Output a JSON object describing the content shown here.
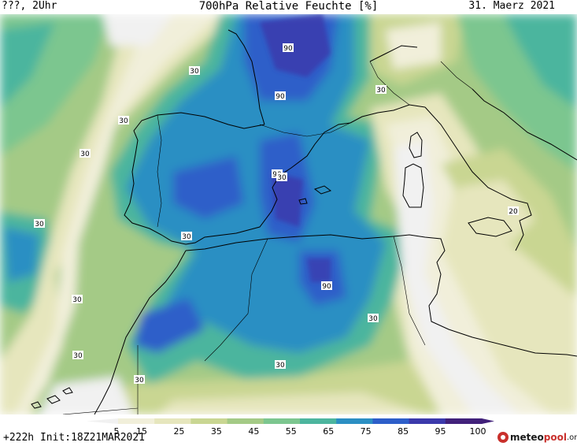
{
  "header": {
    "left": "???, 2Uhr",
    "title": "700hPa Relative Feuchte [%]",
    "date": "31. Maerz 2021"
  },
  "footer": {
    "run": "+222h  Init:18Z21MAR2021"
  },
  "logo": {
    "part1": "meteo",
    "part2": "pool",
    "part3": ".org"
  },
  "legend": {
    "labels": [
      "5",
      "15",
      "25",
      "35",
      "45",
      "55",
      "65",
      "75",
      "85",
      "95",
      "100"
    ],
    "colors": [
      "#f1f1f1",
      "#f1efda",
      "#e6e6bd",
      "#c9d692",
      "#a4ca86",
      "#7cc68f",
      "#4cb59e",
      "#2b8fc3",
      "#2d5ec9",
      "#3b39ab",
      "#41217a"
    ]
  },
  "map_labels": [
    {
      "text": "90",
      "name": "contour-label-90-north"
    },
    {
      "text": "90",
      "name": "contour-label-90-bay-of-biscay"
    },
    {
      "text": "90",
      "name": "contour-label-90-valencia"
    },
    {
      "text": "90",
      "name": "contour-label-90-algeria"
    },
    {
      "text": "30",
      "name": "contour-label-30-atlantic-1"
    },
    {
      "text": "30",
      "name": "contour-label-30-atlantic-2"
    },
    {
      "text": "30",
      "name": "contour-label-30-atlantic-3"
    },
    {
      "text": "30",
      "name": "contour-label-30-atlantic-4"
    },
    {
      "text": "30",
      "name": "contour-label-30-atlantic-5"
    },
    {
      "text": "30",
      "name": "contour-label-30-atlantic-6"
    },
    {
      "text": "30",
      "name": "contour-label-30-gibraltar"
    },
    {
      "text": "30",
      "name": "contour-label-30-sahara"
    },
    {
      "text": "30",
      "name": "contour-label-30-canary"
    },
    {
      "text": "30",
      "name": "contour-label-30-tunisia"
    },
    {
      "text": "30",
      "name": "contour-label-30-alps"
    },
    {
      "text": "20",
      "name": "contour-label-20-sicily"
    },
    {
      "text": "30",
      "name": "contour-label-30-west"
    }
  ]
}
